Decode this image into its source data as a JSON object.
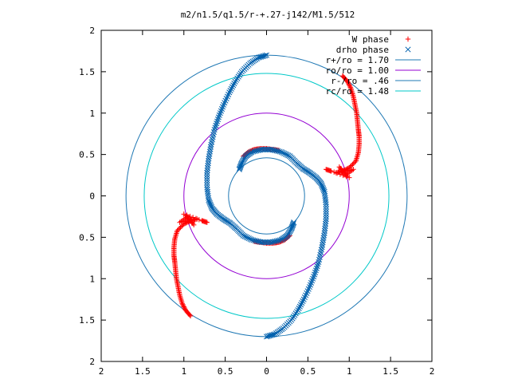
{
  "chart_data": {
    "type": "scatter",
    "title": "m2/n1.5/q1.5/r-+.27-j142/M1.5/512",
    "xlabel": "",
    "ylabel": "",
    "xlim": [
      -2,
      2
    ],
    "ylim": [
      -2,
      2
    ],
    "x_tick_labels": [
      "2",
      "1.5",
      "1",
      "0.5",
      "0",
      "0.5",
      "1",
      "1.5",
      "2"
    ],
    "y_tick_labels": [
      "2",
      "1.5",
      "1",
      "0.5",
      "0",
      "0.5",
      "1",
      "1.5",
      "2"
    ],
    "tick_values": [
      -2,
      -1.5,
      -1,
      -0.5,
      0,
      0.5,
      1,
      1.5,
      2
    ],
    "grid": false,
    "legend_position": "top-right",
    "series": [
      {
        "name": "W phase",
        "kind": "points",
        "marker": "plus",
        "color": "#ff0000",
        "arms": [
          [
            [
              0.92,
              1.45
            ],
            [
              0.98,
              1.38
            ],
            [
              1.02,
              1.3
            ],
            [
              1.05,
              1.2
            ],
            [
              1.07,
              1.1
            ],
            [
              1.09,
              1.0
            ],
            [
              1.1,
              0.9
            ],
            [
              1.11,
              0.8
            ],
            [
              1.12,
              0.72
            ],
            [
              1.12,
              0.62
            ],
            [
              1.11,
              0.52
            ],
            [
              1.08,
              0.42
            ],
            [
              1.0,
              0.34
            ],
            [
              0.92,
              0.3
            ],
            [
              0.84,
              0.28
            ],
            [
              1.05,
              0.32
            ],
            [
              0.95,
              0.25
            ],
            [
              0.88,
              0.35
            ],
            [
              1.0,
              0.22
            ],
            [
              0.78,
              0.3
            ],
            [
              0.72,
              0.32
            ]
          ],
          [
            [
              -0.92,
              -1.45
            ],
            [
              -0.98,
              -1.38
            ],
            [
              -1.02,
              -1.3
            ],
            [
              -1.05,
              -1.2
            ],
            [
              -1.07,
              -1.1
            ],
            [
              -1.09,
              -1.0
            ],
            [
              -1.1,
              -0.9
            ],
            [
              -1.11,
              -0.8
            ],
            [
              -1.12,
              -0.72
            ],
            [
              -1.12,
              -0.62
            ],
            [
              -1.11,
              -0.52
            ],
            [
              -1.08,
              -0.42
            ],
            [
              -1.0,
              -0.34
            ],
            [
              -0.92,
              -0.3
            ],
            [
              -0.84,
              -0.28
            ],
            [
              -1.05,
              -0.32
            ],
            [
              -0.95,
              -0.25
            ],
            [
              -0.88,
              -0.35
            ],
            [
              -1.0,
              -0.22
            ],
            [
              -0.78,
              -0.3
            ],
            [
              -0.72,
              -0.32
            ]
          ],
          [
            [
              -0.28,
              0.48
            ],
            [
              -0.22,
              0.53
            ],
            [
              -0.15,
              0.56
            ],
            [
              -0.08,
              0.57
            ],
            [
              0.0,
              0.57
            ],
            [
              0.08,
              0.56
            ],
            [
              0.15,
              0.55
            ]
          ],
          [
            [
              0.28,
              -0.48
            ],
            [
              0.22,
              -0.53
            ],
            [
              0.15,
              -0.56
            ],
            [
              0.08,
              -0.57
            ],
            [
              0.0,
              -0.57
            ],
            [
              -0.08,
              -0.56
            ],
            [
              -0.15,
              -0.55
            ]
          ]
        ]
      },
      {
        "name": "drho phase",
        "kind": "points",
        "marker": "cross",
        "color": "#0060ad",
        "arms": [
          [
            [
              0.0,
              -1.7
            ],
            [
              0.1,
              -1.67
            ],
            [
              0.2,
              -1.6
            ],
            [
              0.3,
              -1.5
            ],
            [
              0.38,
              -1.38
            ],
            [
              0.45,
              -1.25
            ],
            [
              0.52,
              -1.1
            ],
            [
              0.58,
              -0.95
            ],
            [
              0.63,
              -0.8
            ],
            [
              0.67,
              -0.62
            ],
            [
              0.7,
              -0.45
            ],
            [
              0.72,
              -0.28
            ],
            [
              0.72,
              -0.1
            ],
            [
              0.7,
              0.05
            ],
            [
              0.66,
              0.15
            ],
            [
              0.6,
              0.22
            ],
            [
              0.52,
              0.28
            ],
            [
              0.44,
              0.33
            ],
            [
              0.36,
              0.4
            ],
            [
              0.28,
              0.48
            ],
            [
              0.18,
              0.53
            ],
            [
              0.06,
              0.56
            ],
            [
              -0.06,
              0.56
            ],
            [
              -0.18,
              0.53
            ],
            [
              -0.25,
              0.48
            ],
            [
              -0.3,
              0.4
            ],
            [
              -0.33,
              0.32
            ]
          ],
          [
            [
              0.0,
              1.7
            ],
            [
              -0.1,
              1.67
            ],
            [
              -0.2,
              1.6
            ],
            [
              -0.3,
              1.5
            ],
            [
              -0.38,
              1.38
            ],
            [
              -0.45,
              1.25
            ],
            [
              -0.52,
              1.1
            ],
            [
              -0.58,
              0.95
            ],
            [
              -0.63,
              0.8
            ],
            [
              -0.67,
              0.62
            ],
            [
              -0.7,
              0.45
            ],
            [
              -0.72,
              0.28
            ],
            [
              -0.72,
              0.1
            ],
            [
              -0.7,
              -0.05
            ],
            [
              -0.66,
              -0.15
            ],
            [
              -0.6,
              -0.22
            ],
            [
              -0.52,
              -0.28
            ],
            [
              -0.44,
              -0.33
            ],
            [
              -0.36,
              -0.4
            ],
            [
              -0.28,
              -0.48
            ],
            [
              -0.18,
              -0.53
            ],
            [
              -0.06,
              -0.56
            ],
            [
              0.06,
              -0.56
            ],
            [
              0.18,
              -0.53
            ],
            [
              0.25,
              -0.48
            ],
            [
              0.3,
              -0.4
            ],
            [
              0.33,
              -0.32
            ]
          ]
        ]
      },
      {
        "name": "r+/ro = 1.70",
        "kind": "circle",
        "radius": 1.7,
        "color": "#1f78b4"
      },
      {
        "name": "ro/ro = 1.00",
        "kind": "circle",
        "radius": 1.0,
        "color": "#9400d3"
      },
      {
        "name": "r-/ro = .46",
        "kind": "circle",
        "radius": 0.46,
        "color": "#1f78b4"
      },
      {
        "name": "rc/ro = 1.48",
        "kind": "circle",
        "radius": 1.48,
        "color": "#00c8c8"
      }
    ]
  }
}
